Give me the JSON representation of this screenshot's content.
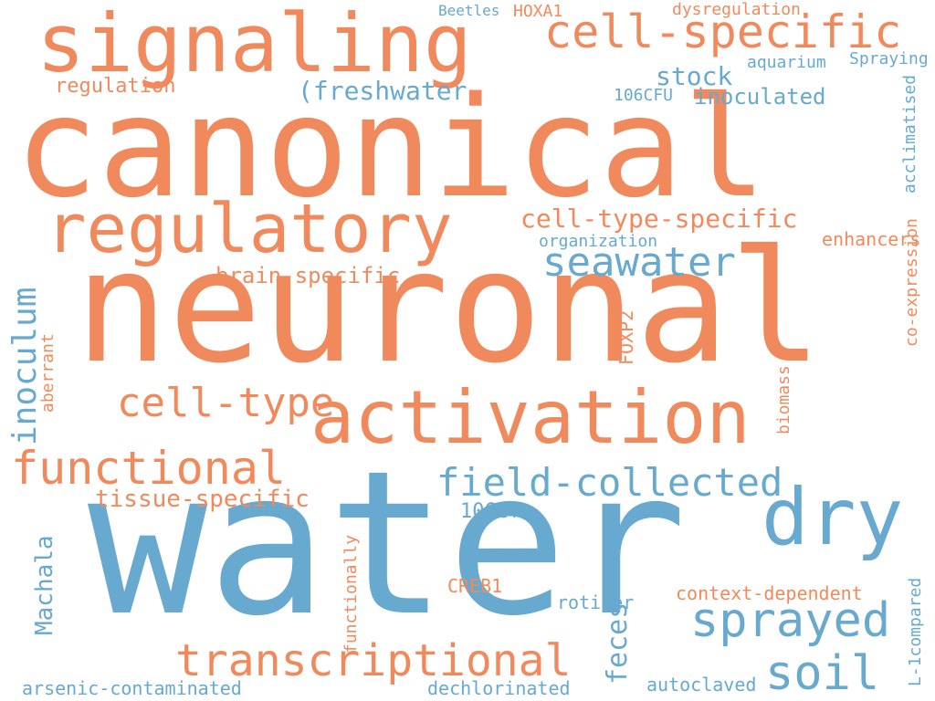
{
  "palette": {
    "orange": "#f08a5d",
    "blue": "#67a9cf",
    "background": "#ffffff"
  },
  "words": [
    "water",
    "neuronal",
    "canonical",
    "signaling",
    "activation",
    "regulatory",
    "dry",
    "cell-specific",
    "transcriptional",
    "soil",
    "sprayed",
    "functional",
    "field-collected",
    "seawater",
    "cell-type",
    "inoculum",
    "cell-type-specific",
    "tissue-specific",
    "(freshwater",
    "stock",
    "inoculated",
    "brain-specific",
    "Machala",
    "feces",
    "arsenic-contaminated",
    "dechlorinated",
    "autoclaved",
    "106cfu",
    "regulation",
    "enhancers",
    "context-dependent",
    "dysregulation",
    "HOXA1",
    "Beetles",
    "aquarium",
    "Spraying",
    "acclimatised",
    "organization",
    "co-expression",
    "biomass",
    "FOXP2",
    "CREB1",
    "rotifer",
    "aberrant",
    "functionally",
    "106CFU",
    "L-1compared"
  ]
}
